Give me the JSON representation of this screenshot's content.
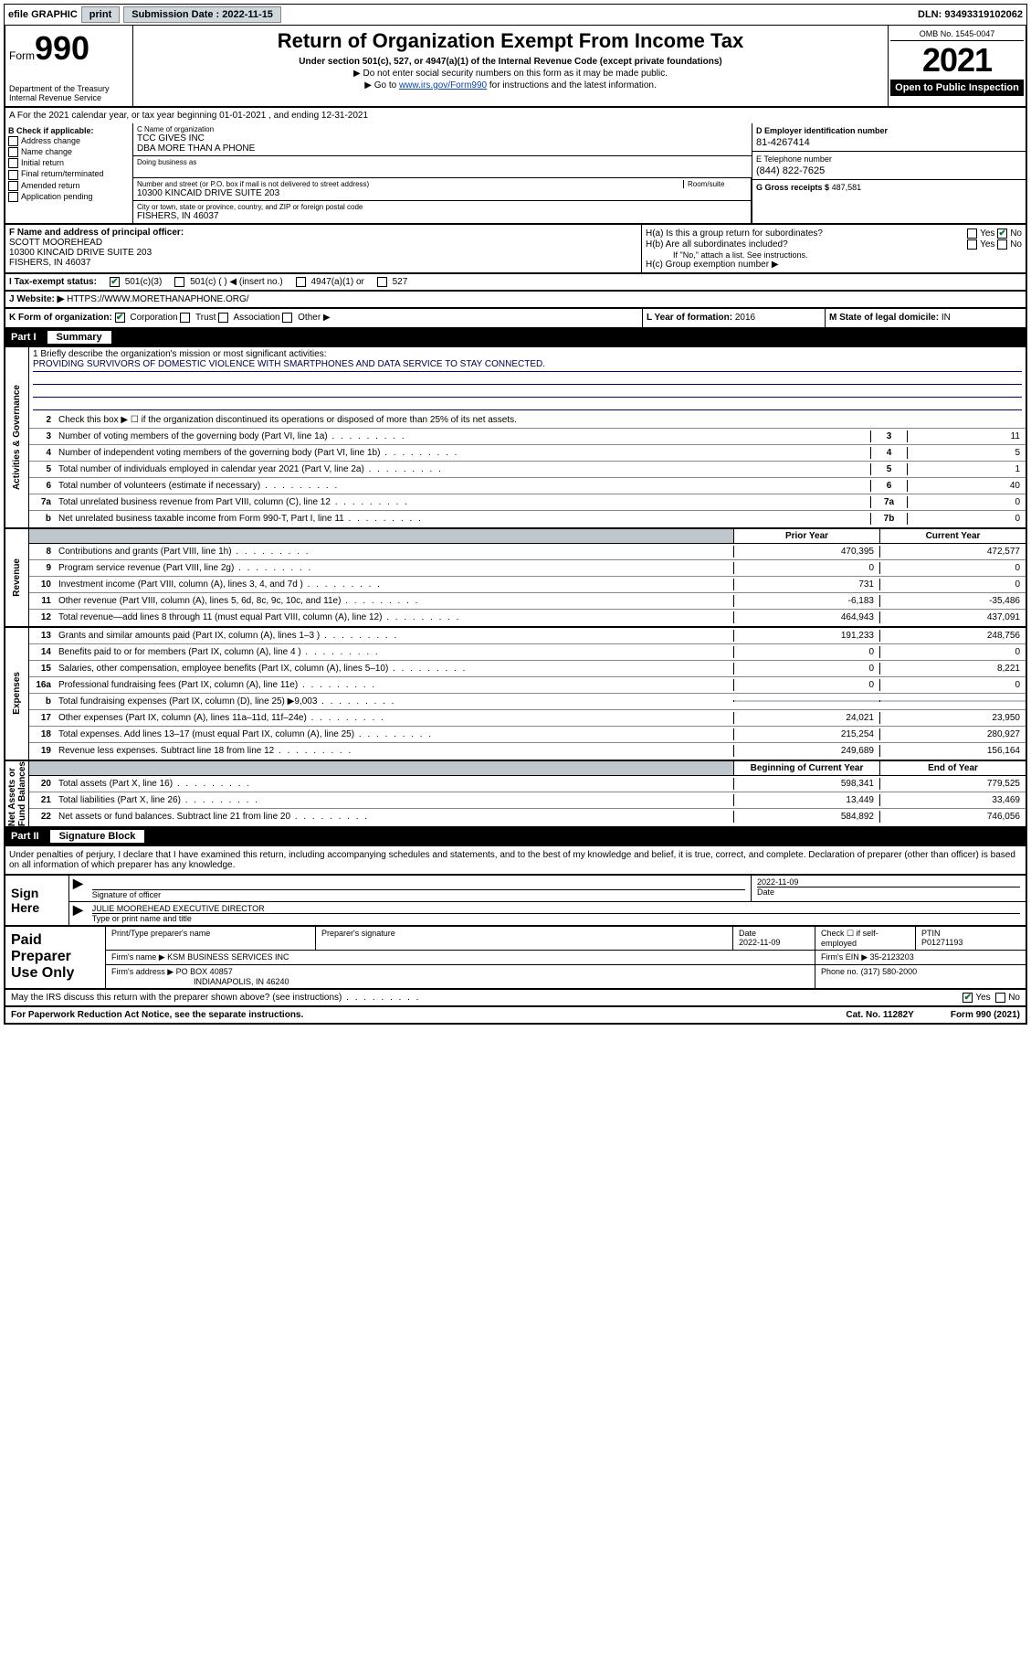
{
  "colors": {
    "link": "#0645ad",
    "check": "#0a7a2a",
    "shade": "#bfc7cc"
  },
  "topbar": {
    "efile": "efile GRAPHIC",
    "print": "print",
    "sub_label": "Submission Date : 2022-11-15",
    "dln_label": "DLN: 93493319102062"
  },
  "header": {
    "form_prefix": "Form",
    "form_number": "990",
    "dept": "Department of the Treasury\nInternal Revenue Service",
    "title": "Return of Organization Exempt From Income Tax",
    "sub1": "Under section 501(c), 527, or 4947(a)(1) of the Internal Revenue Code (except private foundations)",
    "sub2": "▶ Do not enter social security numbers on this form as it may be made public.",
    "sub3_pre": "▶ Go to ",
    "sub3_link": "www.irs.gov/Form990",
    "sub3_post": " for instructions and the latest information.",
    "omb": "OMB No. 1545-0047",
    "year": "2021",
    "open": "Open to Public Inspection"
  },
  "line_a": "A For the 2021 calendar year, or tax year beginning 01-01-2021   , and ending 12-31-2021",
  "box_b": {
    "title": "B Check if applicable:",
    "items": [
      "Address change",
      "Name change",
      "Initial return",
      "Final return/terminated",
      "Amended return",
      "Application pending"
    ]
  },
  "box_c": {
    "label_name": "C Name of organization",
    "name": "TCC GIVES INC",
    "dba": "DBA MORE THAN A PHONE",
    "dba_label": "Doing business as",
    "addr_label": "Number and street (or P.O. box if mail is not delivered to street address)",
    "room_label": "Room/suite",
    "addr": "10300 KINCAID DRIVE SUITE 203",
    "city_label": "City or town, state or province, country, and ZIP or foreign postal code",
    "city": "FISHERS, IN  46037"
  },
  "box_d": {
    "label": "D Employer identification number",
    "value": "81-4267414"
  },
  "box_e": {
    "label": "E Telephone number",
    "value": "(844) 822-7625"
  },
  "box_g": {
    "label": "G Gross receipts $",
    "value": "487,581"
  },
  "box_f": {
    "label": "F Name and address of principal officer:",
    "name": "SCOTT MOOREHEAD",
    "addr1": "10300 KINCAID DRIVE SUITE 203",
    "addr2": "FISHERS, IN  46037"
  },
  "box_h": {
    "ha": "H(a)  Is this a group return for subordinates?",
    "ha_yes": "Yes",
    "ha_no": "No",
    "ha_checked": "no",
    "hb": "H(b)  Are all subordinates included?",
    "hb_note": "If \"No,\" attach a list. See instructions.",
    "hc": "H(c)  Group exemption number ▶"
  },
  "row_i": {
    "label": "I   Tax-exempt status:",
    "opts": [
      "501(c)(3)",
      "501(c) (  ) ◀ (insert no.)",
      "4947(a)(1) or",
      "527"
    ],
    "checked": 0
  },
  "row_j": {
    "label": "J   Website: ▶",
    "value": "HTTPS://WWW.MORETHANAPHONE.ORG/"
  },
  "row_k": {
    "label": "K Form of organization:",
    "opts": [
      "Corporation",
      "Trust",
      "Association",
      "Other ▶"
    ],
    "checked": 0,
    "l_label": "L Year of formation:",
    "l_value": "2016",
    "m_label": "M State of legal domicile:",
    "m_value": "IN"
  },
  "part1": {
    "tag": "Part I",
    "title": "Summary"
  },
  "mission": {
    "prompt": "1   Briefly describe the organization's mission or most significant activities:",
    "text": "PROVIDING SURVIVORS OF DOMESTIC VIOLENCE WITH SMARTPHONES AND DATA SERVICE TO STAY CONNECTED."
  },
  "gov_lines": [
    {
      "n": "2",
      "t": "Check this box ▶ ☐  if the organization discontinued its operations or disposed of more than 25% of its net assets.",
      "box": "",
      "v": ""
    },
    {
      "n": "3",
      "t": "Number of voting members of the governing body (Part VI, line 1a)",
      "box": "3",
      "v": "11"
    },
    {
      "n": "4",
      "t": "Number of independent voting members of the governing body (Part VI, line 1b)",
      "box": "4",
      "v": "5"
    },
    {
      "n": "5",
      "t": "Total number of individuals employed in calendar year 2021 (Part V, line 2a)",
      "box": "5",
      "v": "1"
    },
    {
      "n": "6",
      "t": "Total number of volunteers (estimate if necessary)",
      "box": "6",
      "v": "40"
    },
    {
      "n": "7a",
      "t": "Total unrelated business revenue from Part VIII, column (C), line 12",
      "box": "7a",
      "v": "0"
    },
    {
      "n": "b",
      "t": "Net unrelated business taxable income from Form 990-T, Part I, line 11",
      "box": "7b",
      "v": "0"
    }
  ],
  "twocol_hdr": {
    "py": "Prior Year",
    "cy": "Current Year"
  },
  "rev_lines": [
    {
      "n": "8",
      "t": "Contributions and grants (Part VIII, line 1h)",
      "py": "470,395",
      "cy": "472,577"
    },
    {
      "n": "9",
      "t": "Program service revenue (Part VIII, line 2g)",
      "py": "0",
      "cy": "0"
    },
    {
      "n": "10",
      "t": "Investment income (Part VIII, column (A), lines 3, 4, and 7d )",
      "py": "731",
      "cy": "0"
    },
    {
      "n": "11",
      "t": "Other revenue (Part VIII, column (A), lines 5, 6d, 8c, 9c, 10c, and 11e)",
      "py": "-6,183",
      "cy": "-35,486"
    },
    {
      "n": "12",
      "t": "Total revenue—add lines 8 through 11 (must equal Part VIII, column (A), line 12)",
      "py": "464,943",
      "cy": "437,091"
    }
  ],
  "exp_lines": [
    {
      "n": "13",
      "t": "Grants and similar amounts paid (Part IX, column (A), lines 1–3 )",
      "py": "191,233",
      "cy": "248,756"
    },
    {
      "n": "14",
      "t": "Benefits paid to or for members (Part IX, column (A), line 4 )",
      "py": "0",
      "cy": "0"
    },
    {
      "n": "15",
      "t": "Salaries, other compensation, employee benefits (Part IX, column (A), lines 5–10)",
      "py": "0",
      "cy": "8,221"
    },
    {
      "n": "16a",
      "t": "Professional fundraising fees (Part IX, column (A), line 11e)",
      "py": "0",
      "cy": "0"
    },
    {
      "n": "b",
      "t": "Total fundraising expenses (Part IX, column (D), line 25)  ▶9,003",
      "py": "",
      "cy": "",
      "shade": true
    },
    {
      "n": "17",
      "t": "Other expenses (Part IX, column (A), lines 11a–11d, 11f–24e)",
      "py": "24,021",
      "cy": "23,950"
    },
    {
      "n": "18",
      "t": "Total expenses. Add lines 13–17 (must equal Part IX, column (A), line 25)",
      "py": "215,254",
      "cy": "280,927"
    },
    {
      "n": "19",
      "t": "Revenue less expenses. Subtract line 18 from line 12",
      "py": "249,689",
      "cy": "156,164"
    }
  ],
  "na_hdr": {
    "py": "Beginning of Current Year",
    "cy": "End of Year"
  },
  "na_lines": [
    {
      "n": "20",
      "t": "Total assets (Part X, line 16)",
      "py": "598,341",
      "cy": "779,525"
    },
    {
      "n": "21",
      "t": "Total liabilities (Part X, line 26)",
      "py": "13,449",
      "cy": "33,469"
    },
    {
      "n": "22",
      "t": "Net assets or fund balances. Subtract line 21 from line 20",
      "py": "584,892",
      "cy": "746,056"
    }
  ],
  "vlabels": {
    "gov": "Activities & Governance",
    "rev": "Revenue",
    "exp": "Expenses",
    "na": "Net Assets or\nFund Balances"
  },
  "part2": {
    "tag": "Part II",
    "title": "Signature Block"
  },
  "sig_intro": "Under penalties of perjury, I declare that I have examined this return, including accompanying schedules and statements, and to the best of my knowledge and belief, it is true, correct, and complete. Declaration of preparer (other than officer) is based on all information of which preparer has any knowledge.",
  "sign": {
    "here": "Sign Here",
    "sig_label": "Signature of officer",
    "date": "2022-11-09",
    "date_label": "Date",
    "name": "JULIE MOOREHEAD  EXECUTIVE DIRECTOR",
    "name_label": "Type or print name and title"
  },
  "paid": {
    "title": "Paid Preparer Use Only",
    "h_prep": "Print/Type preparer's name",
    "h_sig": "Preparer's signature",
    "h_date": "Date",
    "date": "2022-11-09",
    "h_check": "Check ☐ if self-employed",
    "h_ptin": "PTIN",
    "ptin": "P01271193",
    "firm_label": "Firm's name    ▶",
    "firm": "KSM BUSINESS SERVICES INC",
    "ein_label": "Firm's EIN ▶",
    "ein": "35-2123203",
    "addr_label": "Firm's address ▶",
    "addr1": "PO BOX 40857",
    "addr2": "INDIANAPOLIS, IN  46240",
    "phone_label": "Phone no.",
    "phone": "(317) 580-2000"
  },
  "discuss": {
    "text": "May the IRS discuss this return with the preparer shown above? (see instructions)",
    "yes": "Yes",
    "no": "No",
    "checked": "yes"
  },
  "footer": {
    "pra": "For Paperwork Reduction Act Notice, see the separate instructions.",
    "cat": "Cat. No. 11282Y",
    "form": "Form 990 (2021)"
  }
}
